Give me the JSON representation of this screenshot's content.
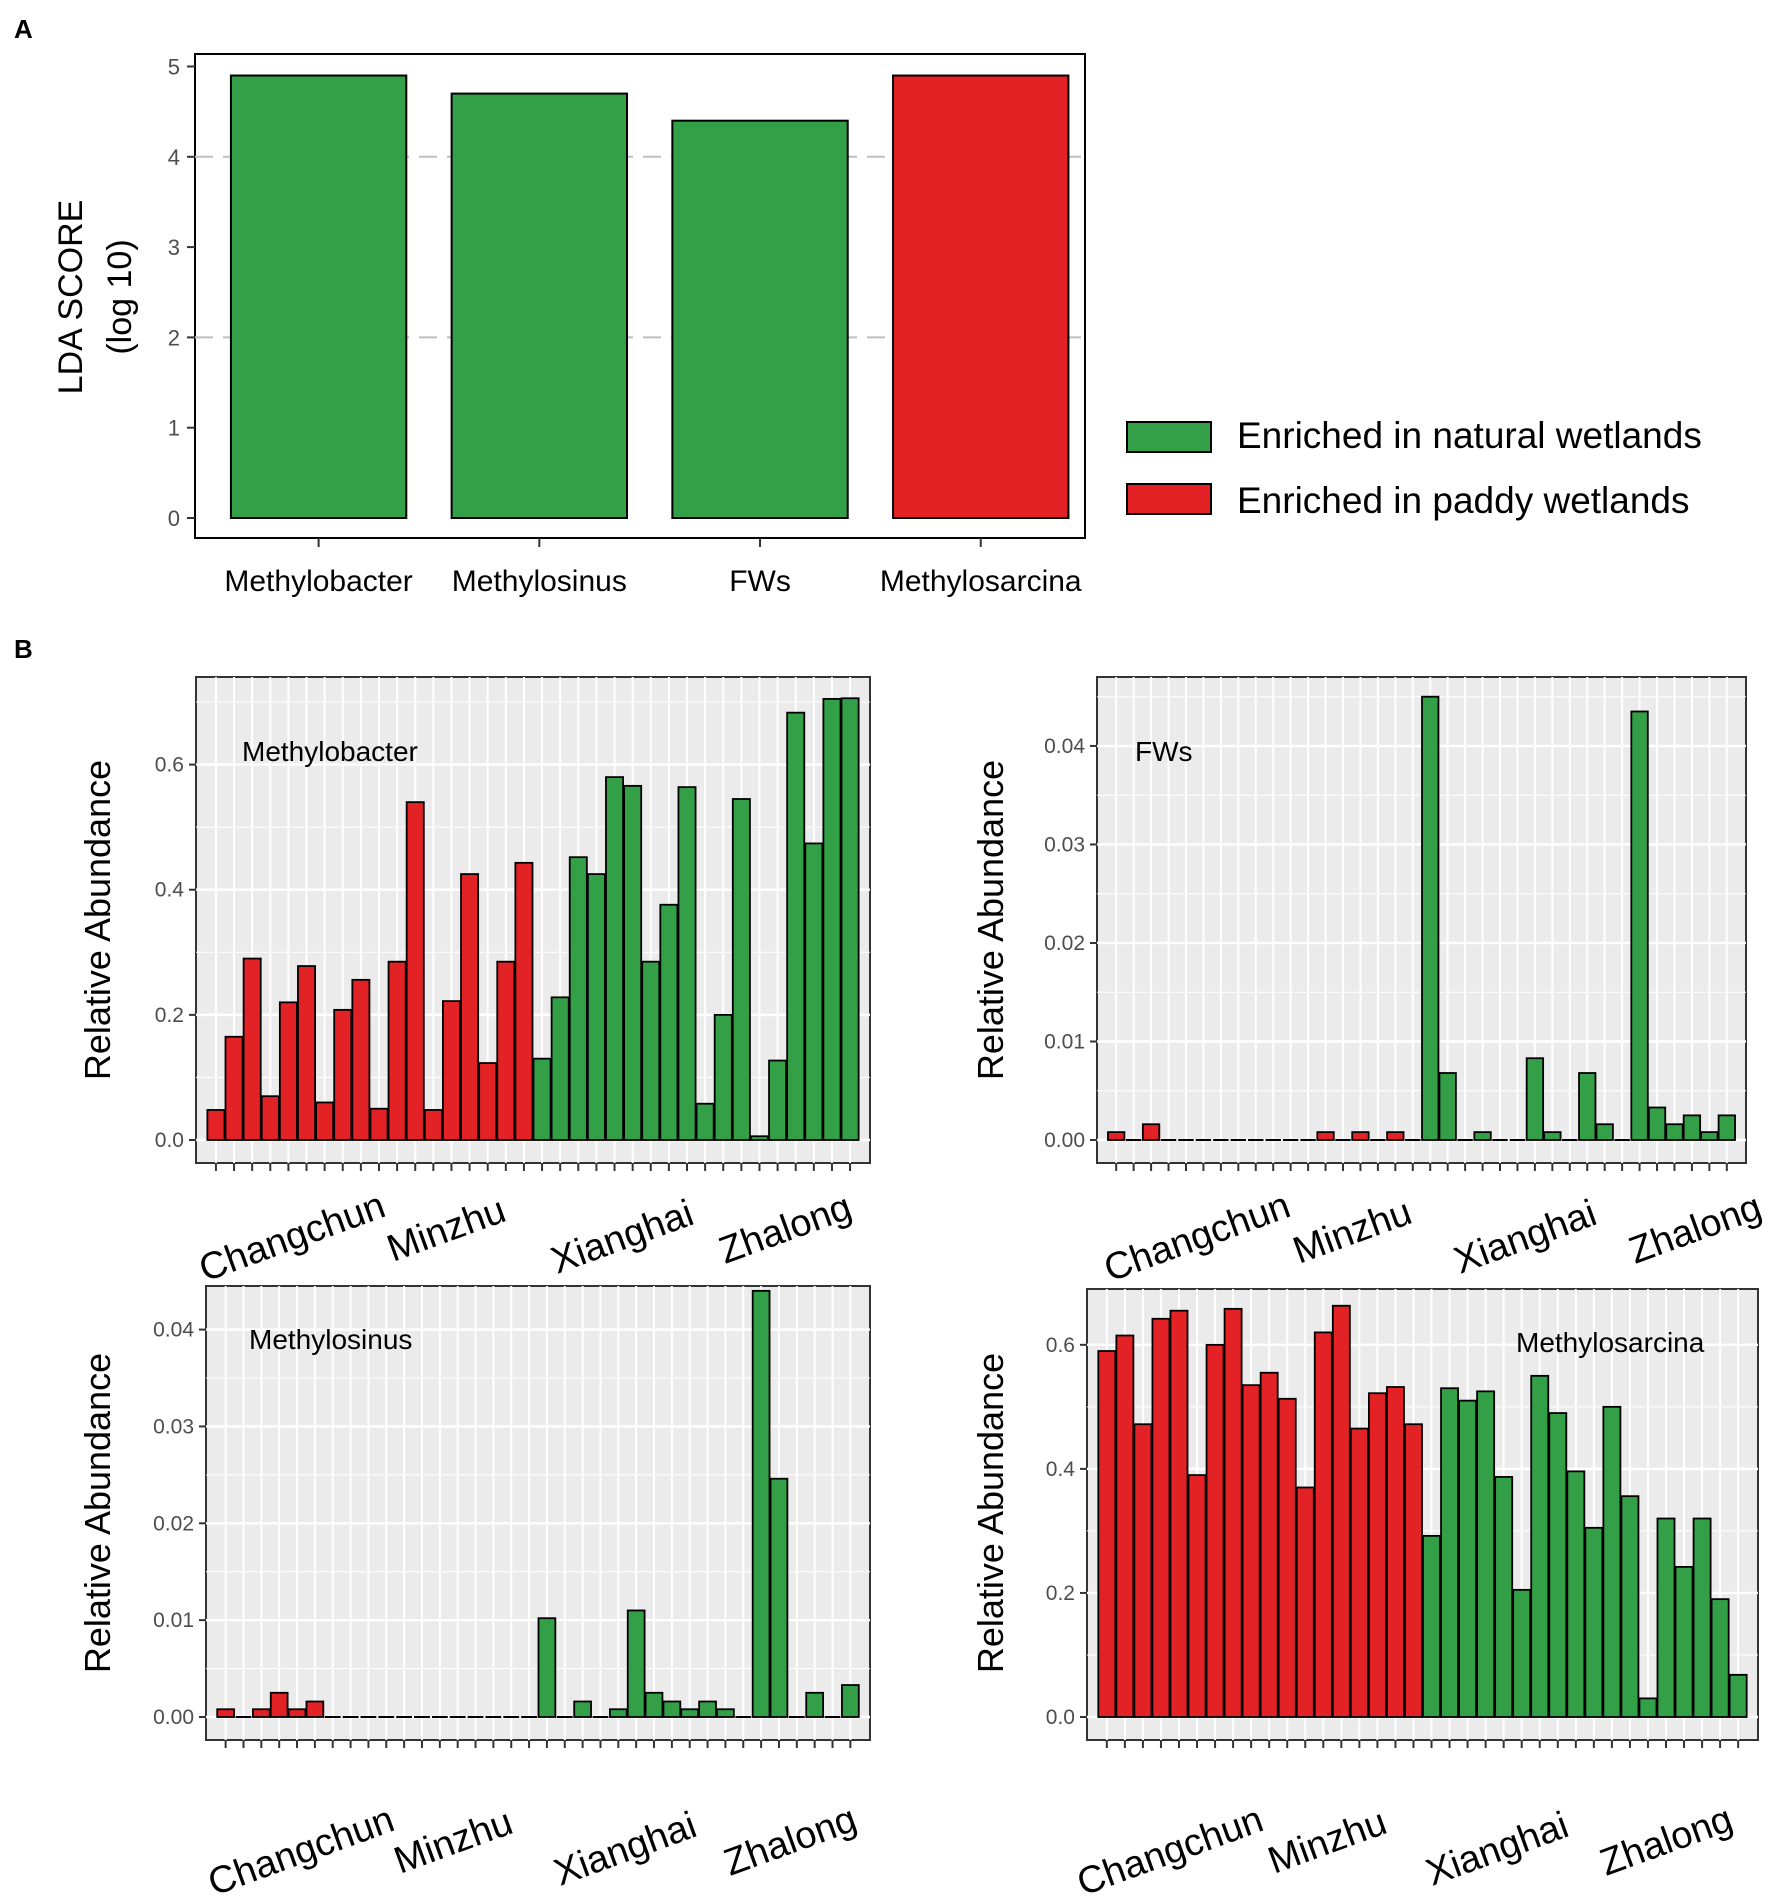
{
  "colors": {
    "natural": "#339f46",
    "paddy": "#e32226",
    "panel_bg": "#ebebeb",
    "grid": "#ffffff",
    "axis_text": "#4d4d4d"
  },
  "chart_data": [
    {
      "id": "A",
      "panel_label": "A",
      "type": "bar",
      "title": "",
      "ylabel": [
        "LDA SCORE",
        "(log 10)"
      ],
      "xlabel": "",
      "ylim": [
        0,
        5.2
      ],
      "yticks": [
        0,
        1,
        2,
        3,
        4,
        5
      ],
      "categories": [
        "Methylobacter",
        "Methylosinus",
        "FWs",
        "Methylosarcina"
      ],
      "values": [
        4.9,
        4.7,
        4.4,
        4.9
      ],
      "groups": [
        "natural",
        "natural",
        "natural",
        "paddy"
      ],
      "legend": [
        {
          "group": "natural",
          "label": "Enriched in natural wetlands"
        },
        {
          "group": "paddy",
          "label": "Enriched in paddy wetlands"
        }
      ],
      "legend_position": "right"
    },
    {
      "id": "B1",
      "panel_label": "B",
      "type": "bar",
      "title": "Methylobacter",
      "ylabel": "Relative Abundance",
      "ylim": [
        0,
        0.74
      ],
      "yticks": [
        "0.0",
        "0.2",
        "0.4",
        "0.6"
      ],
      "ytick_values": [
        0,
        0.2,
        0.4,
        0.6
      ],
      "site_labels": [
        "Changchun",
        "Minzhu",
        "Xianghai",
        "Zhalong"
      ],
      "values": [
        0.048,
        0.165,
        0.29,
        0.07,
        0.22,
        0.278,
        0.06,
        0.208,
        0.256,
        0.05,
        0.285,
        0.54,
        0.048,
        0.222,
        0.425,
        0.123,
        0.285,
        0.443,
        0.13,
        0.228,
        0.452,
        0.425,
        0.58,
        0.566,
        0.285,
        0.376,
        0.564,
        0.058,
        0.2,
        0.545,
        0.006,
        0.127,
        0.683,
        0.474,
        0.705,
        0.706
      ],
      "groups": [
        "paddy",
        "paddy",
        "paddy",
        "paddy",
        "paddy",
        "paddy",
        "paddy",
        "paddy",
        "paddy",
        "paddy",
        "paddy",
        "paddy",
        "paddy",
        "paddy",
        "paddy",
        "paddy",
        "paddy",
        "paddy",
        "natural",
        "natural",
        "natural",
        "natural",
        "natural",
        "natural",
        "natural",
        "natural",
        "natural",
        "natural",
        "natural",
        "natural",
        "natural",
        "natural",
        "natural",
        "natural",
        "natural",
        "natural"
      ]
    },
    {
      "id": "B2",
      "panel_label": "",
      "type": "bar",
      "title": "FWs",
      "ylabel": "Relative Abundance",
      "ylim": [
        0,
        0.047
      ],
      "yticks": [
        "0.00",
        "0.01",
        "0.02",
        "0.03",
        "0.04"
      ],
      "ytick_values": [
        0,
        0.01,
        0.02,
        0.03,
        0.04
      ],
      "site_labels": [
        "Changchun",
        "Minzhu",
        "Xianghai",
        "Zhalong"
      ],
      "values": [
        0.0008,
        0,
        0.0016,
        0,
        0,
        0,
        0,
        0,
        0,
        0,
        0,
        0,
        0.0008,
        0,
        0.0008,
        0,
        0.0008,
        0,
        0.045,
        0.0068,
        0,
        0.0008,
        0,
        0,
        0.0083,
        0.0008,
        0,
        0.0068,
        0.0016,
        0,
        0.0435,
        0.0033,
        0.0016,
        0.0025,
        0.0008,
        0.0025
      ],
      "groups": [
        "paddy",
        "paddy",
        "paddy",
        "paddy",
        "paddy",
        "paddy",
        "paddy",
        "paddy",
        "paddy",
        "paddy",
        "paddy",
        "paddy",
        "paddy",
        "paddy",
        "paddy",
        "paddy",
        "paddy",
        "paddy",
        "natural",
        "natural",
        "natural",
        "natural",
        "natural",
        "natural",
        "natural",
        "natural",
        "natural",
        "natural",
        "natural",
        "natural",
        "natural",
        "natural",
        "natural",
        "natural",
        "natural",
        "natural"
      ]
    },
    {
      "id": "B3",
      "panel_label": "",
      "type": "bar",
      "title": "Methylosinus",
      "ylabel": "Relative Abundance",
      "ylim": [
        0,
        0.0445
      ],
      "yticks": [
        "0.00",
        "0.01",
        "0.02",
        "0.03",
        "0.04"
      ],
      "ytick_values": [
        0,
        0.01,
        0.02,
        0.03,
        0.04
      ],
      "site_labels": [
        "Changchun",
        "Minzhu",
        "Xianghai",
        "Zhalong"
      ],
      "values": [
        0.0008,
        0,
        0.0008,
        0.0025,
        0.0008,
        0.0016,
        0,
        0,
        0,
        0,
        0,
        0,
        0,
        0,
        0,
        0,
        0,
        0,
        0.0102,
        0,
        0.0016,
        0,
        0.0008,
        0.011,
        0.0025,
        0.0016,
        0.0008,
        0.0016,
        0.0008,
        0,
        0.044,
        0.0246,
        0,
        0.0025,
        0,
        0.0033
      ],
      "groups": [
        "paddy",
        "paddy",
        "paddy",
        "paddy",
        "paddy",
        "paddy",
        "paddy",
        "paddy",
        "paddy",
        "paddy",
        "paddy",
        "paddy",
        "paddy",
        "paddy",
        "paddy",
        "paddy",
        "paddy",
        "paddy",
        "natural",
        "natural",
        "natural",
        "natural",
        "natural",
        "natural",
        "natural",
        "natural",
        "natural",
        "natural",
        "natural",
        "natural",
        "natural",
        "natural",
        "natural",
        "natural",
        "natural",
        "natural"
      ]
    },
    {
      "id": "B4",
      "panel_label": "",
      "type": "bar",
      "title": "Methylosarcina",
      "ylabel": "Relative Abundance",
      "ylim": [
        0,
        0.69
      ],
      "yticks": [
        "0.0",
        "0.2",
        "0.4",
        "0.6"
      ],
      "ytick_values": [
        0,
        0.2,
        0.4,
        0.6
      ],
      "site_labels": [
        "Changchun",
        "Minzhu",
        "Xianghai",
        "Zhalong"
      ],
      "values": [
        0.59,
        0.615,
        0.472,
        0.642,
        0.655,
        0.39,
        0.6,
        0.658,
        0.535,
        0.555,
        0.513,
        0.37,
        0.62,
        0.663,
        0.465,
        0.522,
        0.532,
        0.472,
        0.292,
        0.53,
        0.51,
        0.525,
        0.387,
        0.205,
        0.55,
        0.49,
        0.396,
        0.305,
        0.5,
        0.356,
        0.03,
        0.32,
        0.242,
        0.32,
        0.19,
        0.068
      ],
      "groups": [
        "paddy",
        "paddy",
        "paddy",
        "paddy",
        "paddy",
        "paddy",
        "paddy",
        "paddy",
        "paddy",
        "paddy",
        "paddy",
        "paddy",
        "paddy",
        "paddy",
        "paddy",
        "paddy",
        "paddy",
        "paddy",
        "natural",
        "natural",
        "natural",
        "natural",
        "natural",
        "natural",
        "natural",
        "natural",
        "natural",
        "natural",
        "natural",
        "natural",
        "natural",
        "natural",
        "natural",
        "natural",
        "natural",
        "natural"
      ]
    }
  ]
}
